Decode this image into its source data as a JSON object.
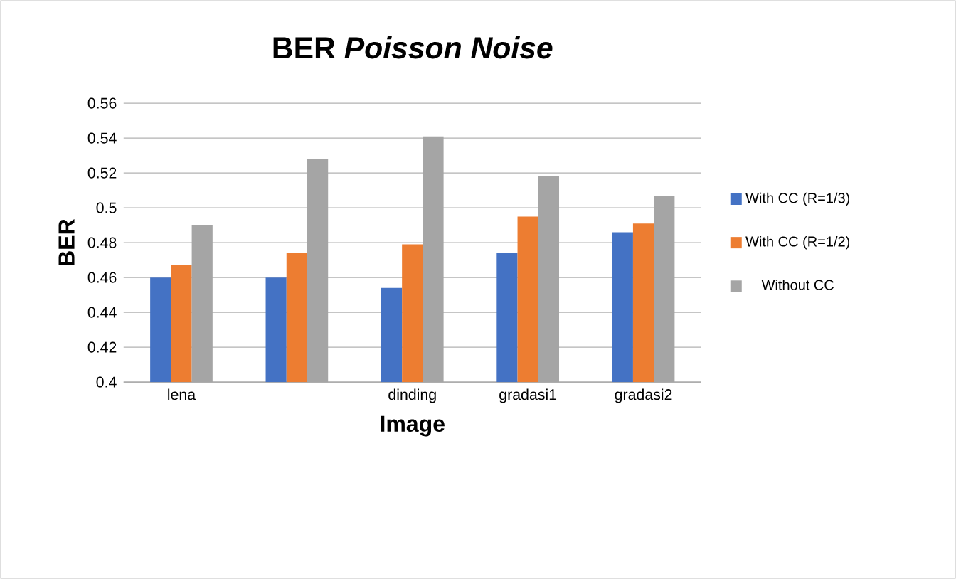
{
  "chart_data": {
    "type": "bar",
    "title": "BER *Poisson Noise*",
    "xlabel": "Image",
    "ylabel": "BER",
    "categories": [
      "lena",
      null,
      "dinding",
      "gradasi1",
      "gradasi2"
    ],
    "series": [
      {
        "name": "With CC (R=1/3)",
        "color": "#4472c4",
        "values": [
          0.46,
          0.46,
          0.454,
          0.474,
          0.486
        ]
      },
      {
        "name": "With CC (R=1/2)",
        "color": "#ed7d31",
        "values": [
          0.467,
          0.474,
          0.479,
          0.495,
          0.491
        ]
      },
      {
        "name": "Without CC",
        "color": "#a5a5a5",
        "values": [
          0.49,
          0.528,
          0.541,
          0.518,
          0.507
        ]
      }
    ],
    "ylim": [
      0.4,
      0.56
    ],
    "yticks": [
      0.4,
      0.42,
      0.44,
      0.46,
      0.48,
      0.5,
      0.52,
      0.54,
      0.56
    ],
    "grid": "y",
    "legend": "right"
  }
}
